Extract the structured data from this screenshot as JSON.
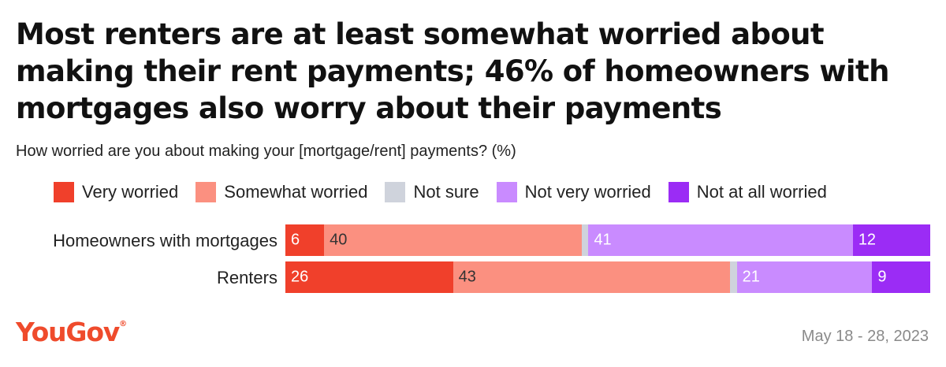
{
  "title": "Most renters are at least somewhat worried about making their rent payments; 46% of homeowners with mortgages also worry about their payments",
  "subtitle": "How worried are you about making your [mortgage/rent] payments? (%)",
  "logo_text": "YouGov",
  "date": "May 18 - 28, 2023",
  "chart_data": {
    "type": "bar",
    "orientation": "horizontal",
    "stacked": true,
    "title": "Most renters are at least somewhat worried about making their rent payments; 46% of homeowners with mortgages also worry about their payments",
    "subtitle": "How worried are you about making your [mortgage/rent] payments? (%)",
    "xlabel": "",
    "ylabel": "",
    "xlim": [
      0,
      100
    ],
    "grid": false,
    "legend_position": "top-left",
    "categories": [
      "Homeowners with mortgages",
      "Renters"
    ],
    "series": [
      {
        "name": "Very worried",
        "color": "#f0402b",
        "label_color": "#ffffff",
        "values": [
          6,
          26
        ]
      },
      {
        "name": "Somewhat worried",
        "color": "#fb9080",
        "label_color": "#333333",
        "values": [
          40,
          43
        ]
      },
      {
        "name": "Not sure",
        "color": "#cfd3dc",
        "label_color": "#333333",
        "values": [
          1,
          1
        ]
      },
      {
        "name": "Not very worried",
        "color": "#c98bff",
        "label_color": "#ffffff",
        "values": [
          41,
          21
        ]
      },
      {
        "name": "Not at all worried",
        "color": "#9b2cf5",
        "label_color": "#ffffff",
        "values": [
          12,
          9
        ]
      }
    ]
  }
}
